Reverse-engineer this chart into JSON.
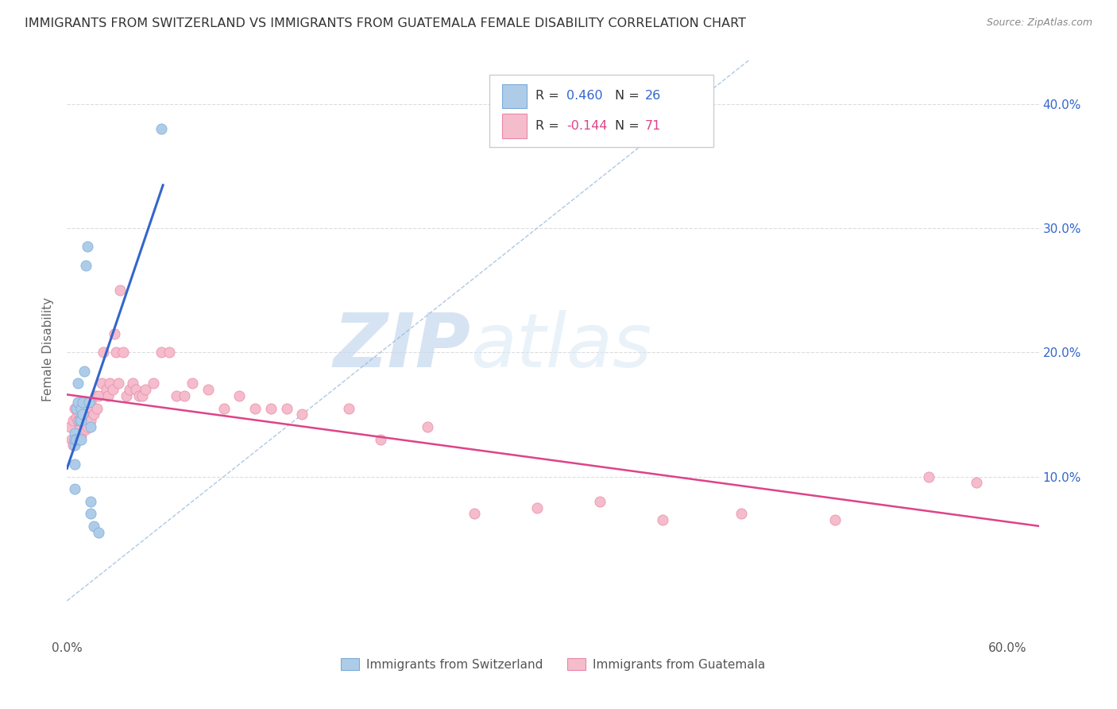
{
  "title": "IMMIGRANTS FROM SWITZERLAND VS IMMIGRANTS FROM GUATEMALA FEMALE DISABILITY CORRELATION CHART",
  "source": "Source: ZipAtlas.com",
  "ylabel": "Female Disability",
  "xlim": [
    0.0,
    0.62
  ],
  "ylim": [
    -0.03,
    0.435
  ],
  "x_ticks": [
    0.0,
    0.1,
    0.2,
    0.3,
    0.4,
    0.5,
    0.6
  ],
  "x_tick_labels": [
    "0.0%",
    "",
    "",
    "",
    "",
    "",
    "60.0%"
  ],
  "y_ticks_right": [
    0.1,
    0.2,
    0.3,
    0.4
  ],
  "y_tick_labels_right": [
    "10.0%",
    "20.0%",
    "30.0%",
    "40.0%"
  ],
  "legend_label_blue": "Immigrants from Switzerland",
  "legend_label_pink": "Immigrants from Guatemala",
  "blue_color": "#aecce8",
  "blue_line_color": "#3366cc",
  "blue_edge_color": "#7aaad8",
  "pink_color": "#f5bccb",
  "pink_line_color": "#dd4488",
  "pink_edge_color": "#e888aa",
  "diagonal_color": "#99bbdd",
  "watermark_zip": "ZIP",
  "watermark_atlas": "atlas",
  "blue_scatter_x": [
    0.005,
    0.005,
    0.005,
    0.005,
    0.005,
    0.006,
    0.006,
    0.007,
    0.007,
    0.008,
    0.008,
    0.009,
    0.009,
    0.009,
    0.01,
    0.01,
    0.011,
    0.012,
    0.013,
    0.014,
    0.015,
    0.015,
    0.015,
    0.017,
    0.02,
    0.06
  ],
  "blue_scatter_y": [
    0.135,
    0.125,
    0.13,
    0.11,
    0.09,
    0.155,
    0.13,
    0.16,
    0.175,
    0.145,
    0.13,
    0.155,
    0.145,
    0.13,
    0.16,
    0.15,
    0.185,
    0.27,
    0.285,
    0.16,
    0.14,
    0.08,
    0.07,
    0.06,
    0.055,
    0.38
  ],
  "pink_scatter_x": [
    0.002,
    0.003,
    0.004,
    0.004,
    0.005,
    0.005,
    0.006,
    0.006,
    0.007,
    0.007,
    0.007,
    0.008,
    0.008,
    0.009,
    0.009,
    0.01,
    0.011,
    0.012,
    0.012,
    0.013,
    0.013,
    0.014,
    0.015,
    0.015,
    0.016,
    0.017,
    0.018,
    0.019,
    0.02,
    0.022,
    0.023,
    0.025,
    0.026,
    0.027,
    0.029,
    0.03,
    0.031,
    0.033,
    0.034,
    0.036,
    0.038,
    0.04,
    0.042,
    0.044,
    0.046,
    0.048,
    0.05,
    0.055,
    0.06,
    0.065,
    0.07,
    0.075,
    0.08,
    0.09,
    0.1,
    0.11,
    0.12,
    0.13,
    0.14,
    0.15,
    0.18,
    0.2,
    0.23,
    0.26,
    0.3,
    0.34,
    0.38,
    0.43,
    0.49,
    0.55,
    0.58
  ],
  "pink_scatter_y": [
    0.14,
    0.13,
    0.145,
    0.125,
    0.155,
    0.13,
    0.148,
    0.135,
    0.155,
    0.145,
    0.13,
    0.15,
    0.138,
    0.148,
    0.133,
    0.148,
    0.16,
    0.15,
    0.138,
    0.152,
    0.14,
    0.148,
    0.16,
    0.145,
    0.155,
    0.15,
    0.165,
    0.155,
    0.165,
    0.175,
    0.2,
    0.17,
    0.165,
    0.175,
    0.17,
    0.215,
    0.2,
    0.175,
    0.25,
    0.2,
    0.165,
    0.17,
    0.175,
    0.17,
    0.165,
    0.165,
    0.17,
    0.175,
    0.2,
    0.2,
    0.165,
    0.165,
    0.175,
    0.17,
    0.155,
    0.165,
    0.155,
    0.155,
    0.155,
    0.15,
    0.155,
    0.13,
    0.14,
    0.07,
    0.075,
    0.08,
    0.065,
    0.07,
    0.065,
    0.1,
    0.095
  ]
}
